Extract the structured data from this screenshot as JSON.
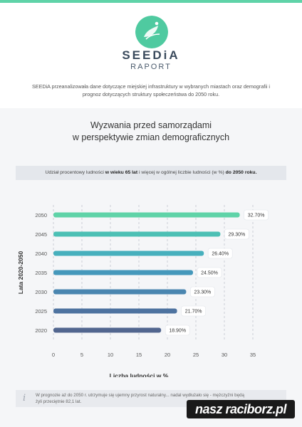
{
  "header": {
    "brand": "SEEDiA",
    "subtitle": "RAPORT",
    "intro": "SEEDiA przeanalizowała dane dotyczące miejskiej infrastruktury w wybranych miastach oraz demografii i prognoz dotyczących struktury społeczeństwa do 2050 roku."
  },
  "section": {
    "title_line1": "Wyzwania przed samorządami",
    "title_line2": "w perspektywie zmian demograficznych"
  },
  "caption": {
    "part1": "Udział procentowy ludności ",
    "bold1": "w wieku 65 lat",
    "part2": " i więcej w ogólnej liczbie ludności (w %) ",
    "bold2": "do 2050 roku."
  },
  "chart_data": {
    "type": "bar",
    "orientation": "horizontal",
    "categories": [
      "2050",
      "2045",
      "2040",
      "2035",
      "2030",
      "2025",
      "2020"
    ],
    "values": [
      32.7,
      29.3,
      26.4,
      24.5,
      23.3,
      21.7,
      18.9
    ],
    "value_labels": [
      "32.70%",
      "29.30%",
      "26.40%",
      "24.50%",
      "23.30%",
      "21.70%",
      "18.90%"
    ],
    "colors": [
      "#5fd3a8",
      "#4cc0b5",
      "#47b0bd",
      "#4598bb",
      "#4a86b0",
      "#4e73a0",
      "#52668f"
    ],
    "xlim": [
      0,
      35
    ],
    "xticks": [
      "0",
      "5",
      "10",
      "15",
      "20",
      "25",
      "30",
      "35"
    ],
    "xlabel": "Liczba ludności w %",
    "ylabel": "Lata 2020-2050",
    "grid": true
  },
  "footer": {
    "icon": "info-icon",
    "note": "W prognozie aż do 2050 r. utrzymuje się ujemny przyrost naturalny... nadal wydłużało się - mężczyźni będą żyli przeciętnie 82,1 lat."
  },
  "badge": {
    "text": "nasz raciborz.pl"
  }
}
